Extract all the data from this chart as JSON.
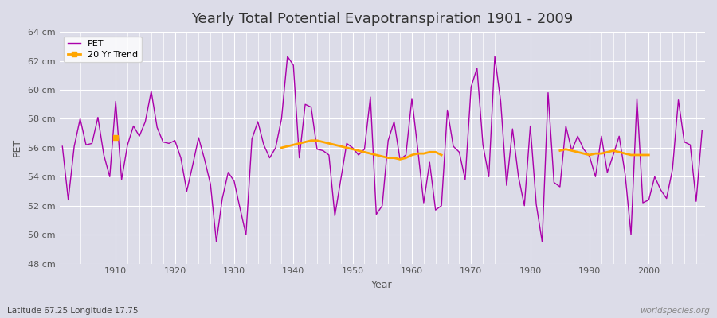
{
  "title": "Yearly Total Potential Evapotranspiration 1901 - 2009",
  "xlabel": "Year",
  "ylabel": "PET",
  "subtitle": "Latitude 67.25 Longitude 17.75",
  "watermark": "worldspecies.org",
  "pet_color": "#AA00AA",
  "trend_color": "#FFA500",
  "bg_color": "#DCDCE8",
  "grid_color": "#FFFFFF",
  "ylim": [
    48,
    64
  ],
  "ytick_labels": [
    "48 cm",
    "50 cm",
    "52 cm",
    "54 cm",
    "56 cm",
    "58 cm",
    "60 cm",
    "62 cm",
    "64 cm"
  ],
  "ytick_values": [
    48,
    50,
    52,
    54,
    56,
    58,
    60,
    62,
    64
  ],
  "years": [
    1901,
    1902,
    1903,
    1904,
    1905,
    1906,
    1907,
    1908,
    1909,
    1910,
    1911,
    1912,
    1913,
    1914,
    1915,
    1916,
    1917,
    1918,
    1919,
    1920,
    1921,
    1922,
    1923,
    1924,
    1925,
    1926,
    1927,
    1928,
    1929,
    1930,
    1931,
    1932,
    1933,
    1934,
    1935,
    1936,
    1937,
    1938,
    1939,
    1940,
    1941,
    1942,
    1943,
    1944,
    1945,
    1946,
    1947,
    1948,
    1949,
    1950,
    1951,
    1952,
    1953,
    1954,
    1955,
    1956,
    1957,
    1958,
    1959,
    1960,
    1961,
    1962,
    1963,
    1964,
    1965,
    1966,
    1967,
    1968,
    1969,
    1970,
    1971,
    1972,
    1973,
    1974,
    1975,
    1976,
    1977,
    1978,
    1979,
    1980,
    1981,
    1982,
    1983,
    1984,
    1985,
    1986,
    1987,
    1988,
    1989,
    1990,
    1991,
    1992,
    1993,
    1994,
    1995,
    1996,
    1997,
    1998,
    1999,
    2000,
    2001,
    2002,
    2003,
    2004,
    2005,
    2006,
    2007,
    2008,
    2009
  ],
  "pet_values": [
    56.1,
    52.4,
    56.1,
    58.0,
    56.2,
    56.3,
    58.1,
    55.5,
    54.0,
    59.2,
    53.8,
    56.2,
    57.5,
    56.8,
    57.8,
    59.9,
    57.4,
    56.4,
    56.3,
    56.5,
    55.3,
    53.0,
    54.8,
    56.7,
    55.2,
    53.5,
    49.5,
    52.5,
    54.3,
    53.7,
    51.8,
    50.0,
    56.6,
    57.8,
    56.2,
    55.3,
    56.0,
    58.0,
    62.3,
    61.7,
    55.3,
    59.0,
    58.8,
    55.9,
    55.8,
    55.5,
    51.3,
    53.8,
    56.3,
    56.0,
    55.5,
    55.9,
    59.5,
    51.4,
    52.0,
    56.5,
    57.8,
    55.2,
    55.5,
    59.4,
    55.9,
    52.2,
    55.0,
    51.7,
    52.0,
    58.6,
    56.1,
    55.7,
    53.8,
    60.2,
    61.5,
    56.2,
    54.0,
    62.3,
    59.2,
    53.4,
    57.3,
    54.0,
    52.0,
    57.5,
    52.1,
    49.5,
    59.8,
    53.6,
    53.3,
    57.5,
    55.8,
    56.8,
    55.9,
    55.4,
    54.0,
    56.8,
    54.3,
    55.5,
    56.8,
    54.2,
    50.0,
    59.4,
    52.2,
    52.4,
    54.0,
    53.1,
    52.5,
    54.5,
    59.3,
    56.4,
    56.2,
    52.3,
    57.2
  ],
  "trend_segments": [
    {
      "years": [
        1910
      ],
      "values": [
        56.7
      ]
    },
    {
      "years": [
        1938,
        1939,
        1940,
        1941,
        1942,
        1943,
        1944,
        1945,
        1946,
        1947,
        1948,
        1949,
        1950,
        1951,
        1952,
        1953,
        1954,
        1955,
        1956,
        1957,
        1958,
        1959,
        1960,
        1961,
        1962,
        1963,
        1964,
        1965
      ],
      "values": [
        56.0,
        56.1,
        56.2,
        56.3,
        56.4,
        56.5,
        56.5,
        56.4,
        56.3,
        56.2,
        56.1,
        56.0,
        55.9,
        55.8,
        55.7,
        55.6,
        55.5,
        55.4,
        55.3,
        55.3,
        55.2,
        55.3,
        55.5,
        55.6,
        55.6,
        55.7,
        55.7,
        55.5
      ]
    },
    {
      "years": [
        1985,
        1986,
        1987,
        1988,
        1989,
        1990,
        1991,
        1992,
        1993,
        1994,
        1995,
        1996,
        1997,
        1998,
        1999,
        2000
      ],
      "values": [
        55.8,
        55.9,
        55.8,
        55.7,
        55.6,
        55.5,
        55.6,
        55.6,
        55.7,
        55.8,
        55.7,
        55.6,
        55.5,
        55.5,
        55.5,
        55.5
      ]
    }
  ]
}
